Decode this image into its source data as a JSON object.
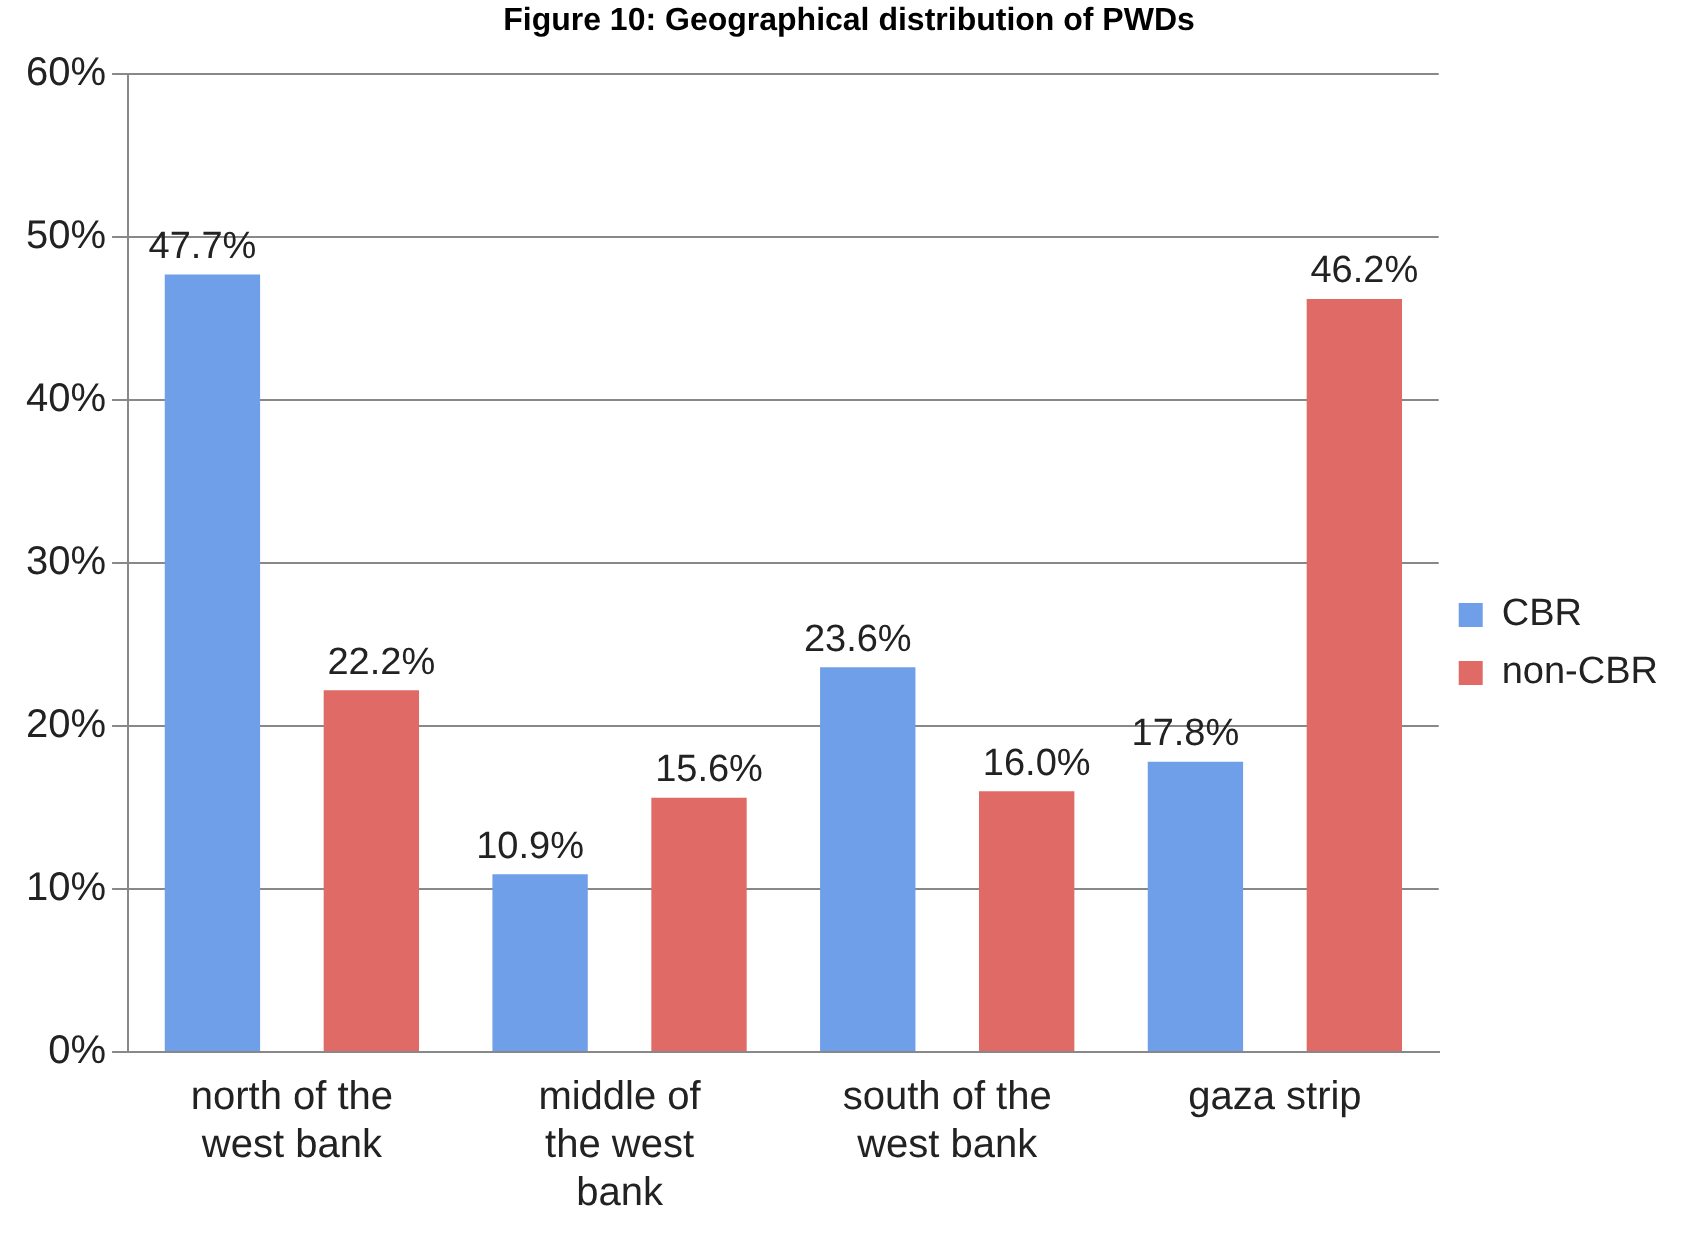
{
  "chart_data": {
    "type": "bar",
    "title": "Figure 10: Geographical distribution of PWDs",
    "categories": [
      "north of the west bank",
      "middle of the west bank",
      "south of the west bank",
      "gaza strip"
    ],
    "series": [
      {
        "name": "CBR",
        "color": "#6f9fe8",
        "values": [
          47.7,
          10.9,
          23.6,
          17.8
        ],
        "value_labels": [
          "47.7%",
          "10.9%",
          "23.6%",
          "17.8%"
        ]
      },
      {
        "name": "non-CBR",
        "color": "#e06a66",
        "values": [
          22.2,
          15.6,
          16.0,
          46.2
        ],
        "value_labels": [
          "22.2%",
          "15.6%",
          "16.0%",
          "46.2%"
        ]
      }
    ],
    "ylim": [
      0,
      60
    ],
    "yticks": [
      {
        "value": 0,
        "label": "0%"
      },
      {
        "value": 10,
        "label": "10%"
      },
      {
        "value": 20,
        "label": "20%"
      },
      {
        "value": 30,
        "label": "30%"
      },
      {
        "value": 40,
        "label": "40%"
      },
      {
        "value": 50,
        "label": "50%"
      },
      {
        "value": 60,
        "label": "60%"
      }
    ],
    "grid": "y",
    "legend": "right"
  }
}
